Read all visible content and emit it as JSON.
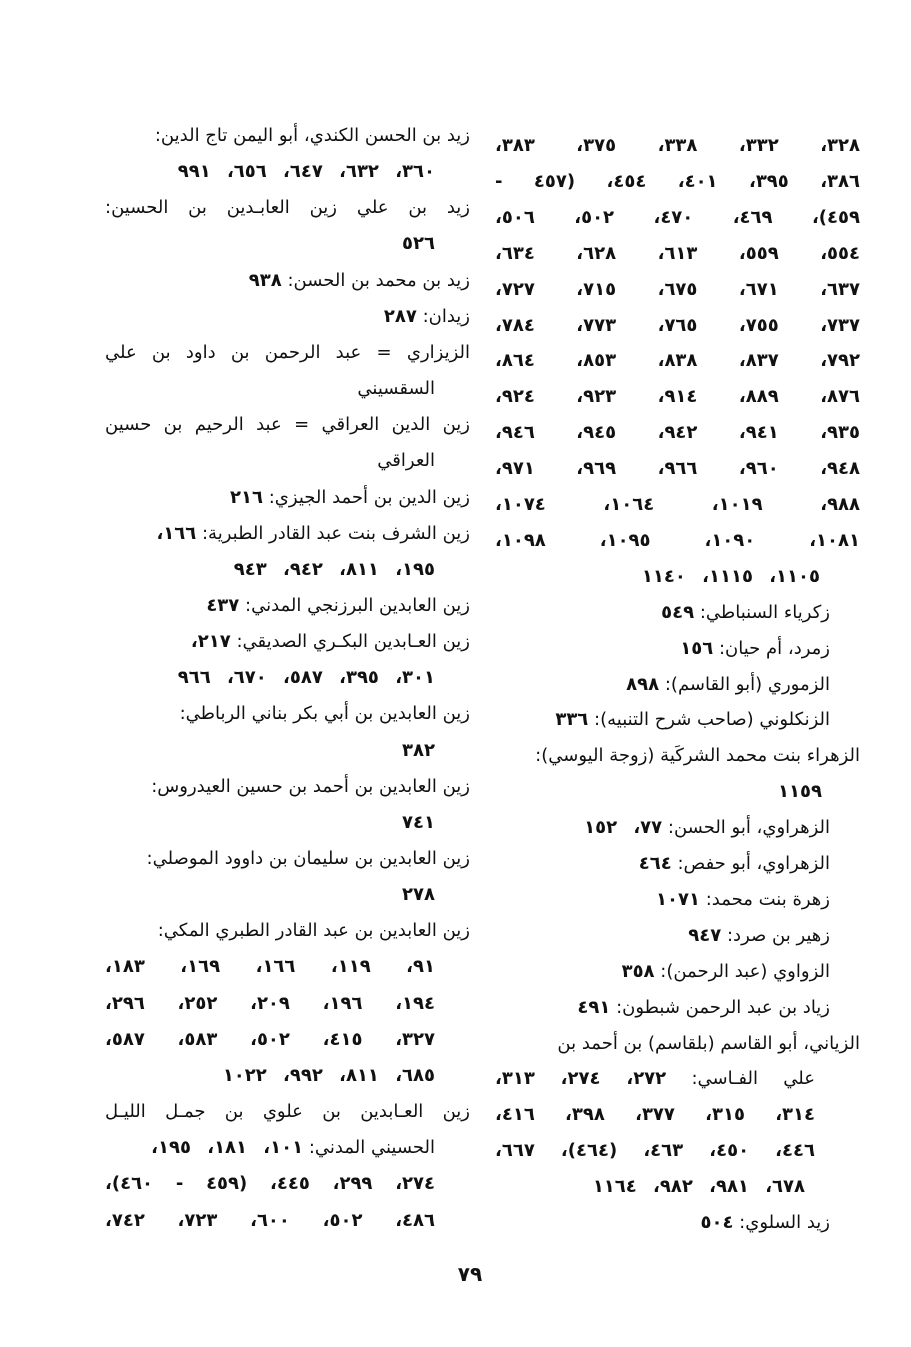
{
  "page_number": "٧٩",
  "columns": {
    "right": [
      {
        "t": "",
        "n": "٣٢٨، ٣٣٢، ٣٣٨، ٣٧٥، ٣٨٣،"
      },
      {
        "t": "",
        "n": "٣٨٦، ٣٩٥، ٤٠١، ٤٥٤، (٤٥٧ -"
      },
      {
        "t": "",
        "n": "٤٥٩)، ٤٦٩، ٤٧٠، ٥٠٢، ٥٠٦،"
      },
      {
        "t": "",
        "n": "٥٥٤، ٥٥٩، ٦١٣، ٦٢٨، ٦٣٤،"
      },
      {
        "t": "",
        "n": "٦٣٧، ٦٧١، ٦٧٥، ٧١٥، ٧٢٧،"
      },
      {
        "t": "",
        "n": "٧٣٧، ٧٥٥، ٧٦٥، ٧٧٣، ٧٨٤،"
      },
      {
        "t": "",
        "n": "٧٩٢، ٨٣٧، ٨٣٨، ٨٥٣، ٨٦٤،"
      },
      {
        "t": "",
        "n": "٨٧٦، ٨٨٩، ٩١٤، ٩٢٣، ٩٢٤،"
      },
      {
        "t": "",
        "n": "٩٣٥، ٩٤١، ٩٤٢، ٩٤٥، ٩٤٦،"
      },
      {
        "t": "",
        "n": "٩٤٨، ٩٦٠، ٩٦٦، ٩٦٩، ٩٧١،"
      },
      {
        "t": "",
        "n": "٩٨٨، ١٠١٩، ١٠٦٤، ١٠٧٤،"
      },
      {
        "t": "",
        "n": "١٠٨١، ١٠٩٠، ١٠٩٥، ١٠٩٨،"
      },
      {
        "t": "",
        "n": "١١٠٥، ١١١٥، ١١٤٠"
      },
      {
        "t": "زكرياء السنباطي: ",
        "n": "٥٤٩"
      },
      {
        "t": "زمرد، أم حيان: ",
        "n": "١٥٦"
      },
      {
        "t": "الزموري (أبو القاسم): ",
        "n": "٨٩٨"
      },
      {
        "t": "الزنكلوني (صاحب شرح التنبيه): ",
        "n": "٣٣٦"
      },
      {
        "t": "الزهراء بنت محمد الشركَية (زوجة اليوسي):",
        "n": ""
      },
      {
        "t": "",
        "n": "١١٥٩"
      },
      {
        "t": "الزهراوي، أبو الحسن: ",
        "n": "٧٧، ١٥٢"
      },
      {
        "t": "الزهراوي، أبو حفص: ",
        "n": "٤٦٤"
      },
      {
        "t": "زهرة بنت محمد: ",
        "n": "١٠٧١"
      },
      {
        "t": "زهير بن صرد: ",
        "n": "٩٤٧"
      },
      {
        "t": "الزواوي (عبد الرحمن): ",
        "n": "٣٥٨"
      },
      {
        "t": "زياد بن عبد الرحمن شبطون: ",
        "n": "٤٩١"
      },
      {
        "t": "الزياني، أبو القاسم (بلقاسم) بن أحمد بن",
        "n": ""
      },
      {
        "t": "علي الفـاسي: ",
        "n": "٢٧٢، ٢٧٤، ٣١٣،"
      },
      {
        "t": "",
        "n": "٣١٤، ٣١٥، ٣٧٧، ٣٩٨، ٤١٦،"
      },
      {
        "t": "",
        "n": "٤٤٦، ٤٥٠، ٤٦٣، (٤٦٤)، ٦٦٧،"
      },
      {
        "t": "",
        "n": "٦٧٨، ٩٨١، ٩٨٢، ١١٦٤"
      },
      {
        "t": "زيد السلوي: ",
        "n": "٥٠٤"
      }
    ],
    "left": [
      {
        "t": "زيد بن الحسن الكندي، أبو اليمن تاج الدين:",
        "n": ""
      },
      {
        "t": "",
        "n": "٣٦٠، ٦٣٢، ٦٤٧، ٦٥٦، ٩٩١"
      },
      {
        "t": "زيد بن علي زين العابـدين بن الحسين:",
        "n": ""
      },
      {
        "t": "",
        "n": "٥٢٦"
      },
      {
        "t": "زيد بن محمد بن الحسن: ",
        "n": "٩٣٨"
      },
      {
        "t": "زيدان: ",
        "n": "٢٨٧"
      },
      {
        "t": "الزيزاري = عبد الرحمن بن داود بن علي",
        "n": ""
      },
      {
        "t": "السقسيني",
        "n": ""
      },
      {
        "t": "زين الدين العراقي = عبد الرحيم بن حسين",
        "n": ""
      },
      {
        "t": "العراقي",
        "n": ""
      },
      {
        "t": "زين الدين بن أحمد الجيزي: ",
        "n": "٢١٦"
      },
      {
        "t": "زين الشرف بنت عبد القادر الطبرية: ",
        "n": "١٦٦،"
      },
      {
        "t": "",
        "n": "١٩٥، ٨١١، ٩٤٢، ٩٤٣"
      },
      {
        "t": "زين العابدين البرزنجي المدني: ",
        "n": "٤٣٧"
      },
      {
        "t": "زين العـابدين البكـري الصديقي: ",
        "n": "٢١٧،"
      },
      {
        "t": "",
        "n": "٣٠١، ٣٩٥، ٥٨٧، ٦٧٠، ٩٦٦"
      },
      {
        "t": "زين العابدين بن أبي بكر بناني الرباطي:",
        "n": ""
      },
      {
        "t": "",
        "n": "٣٨٢"
      },
      {
        "t": "زين العابدين بن أحمد بن حسين العيدروس:",
        "n": ""
      },
      {
        "t": "",
        "n": "٧٤١"
      },
      {
        "t": "زين العابدين بن سليمان بن داوود الموصلي:",
        "n": ""
      },
      {
        "t": "",
        "n": "٢٧٨"
      },
      {
        "t": "زين العابدين بن عبد القادر الطبري المكي:",
        "n": ""
      },
      {
        "t": "",
        "n": "٩١، ١١٩، ١٦٦، ١٦٩، ١٨٣،"
      },
      {
        "t": "",
        "n": "١٩٤، ١٩٦، ٢٠٩، ٢٥٢، ٢٩٦،"
      },
      {
        "t": "",
        "n": "٣٢٧، ٤١٥، ٥٠٢، ٥٨٣، ٥٨٧،"
      },
      {
        "t": "",
        "n": "٦٨٥، ٨١١، ٩٩٢، ١٠٢٢"
      },
      {
        "t": "زين العـابدين بن علوي بن جمـل الليـل",
        "n": ""
      },
      {
        "t": "الحسيني المدني: ",
        "n": "١٠١، ١٨١، ١٩٥،"
      },
      {
        "t": "",
        "n": "٢٧٤، ٢٩٩، ٤٤٥، (٤٥٩ - ٤٦٠)،"
      },
      {
        "t": "",
        "n": "٤٨٦، ٥٠٢، ٦٠٠، ٧٢٣، ٧٤٢،"
      }
    ]
  }
}
